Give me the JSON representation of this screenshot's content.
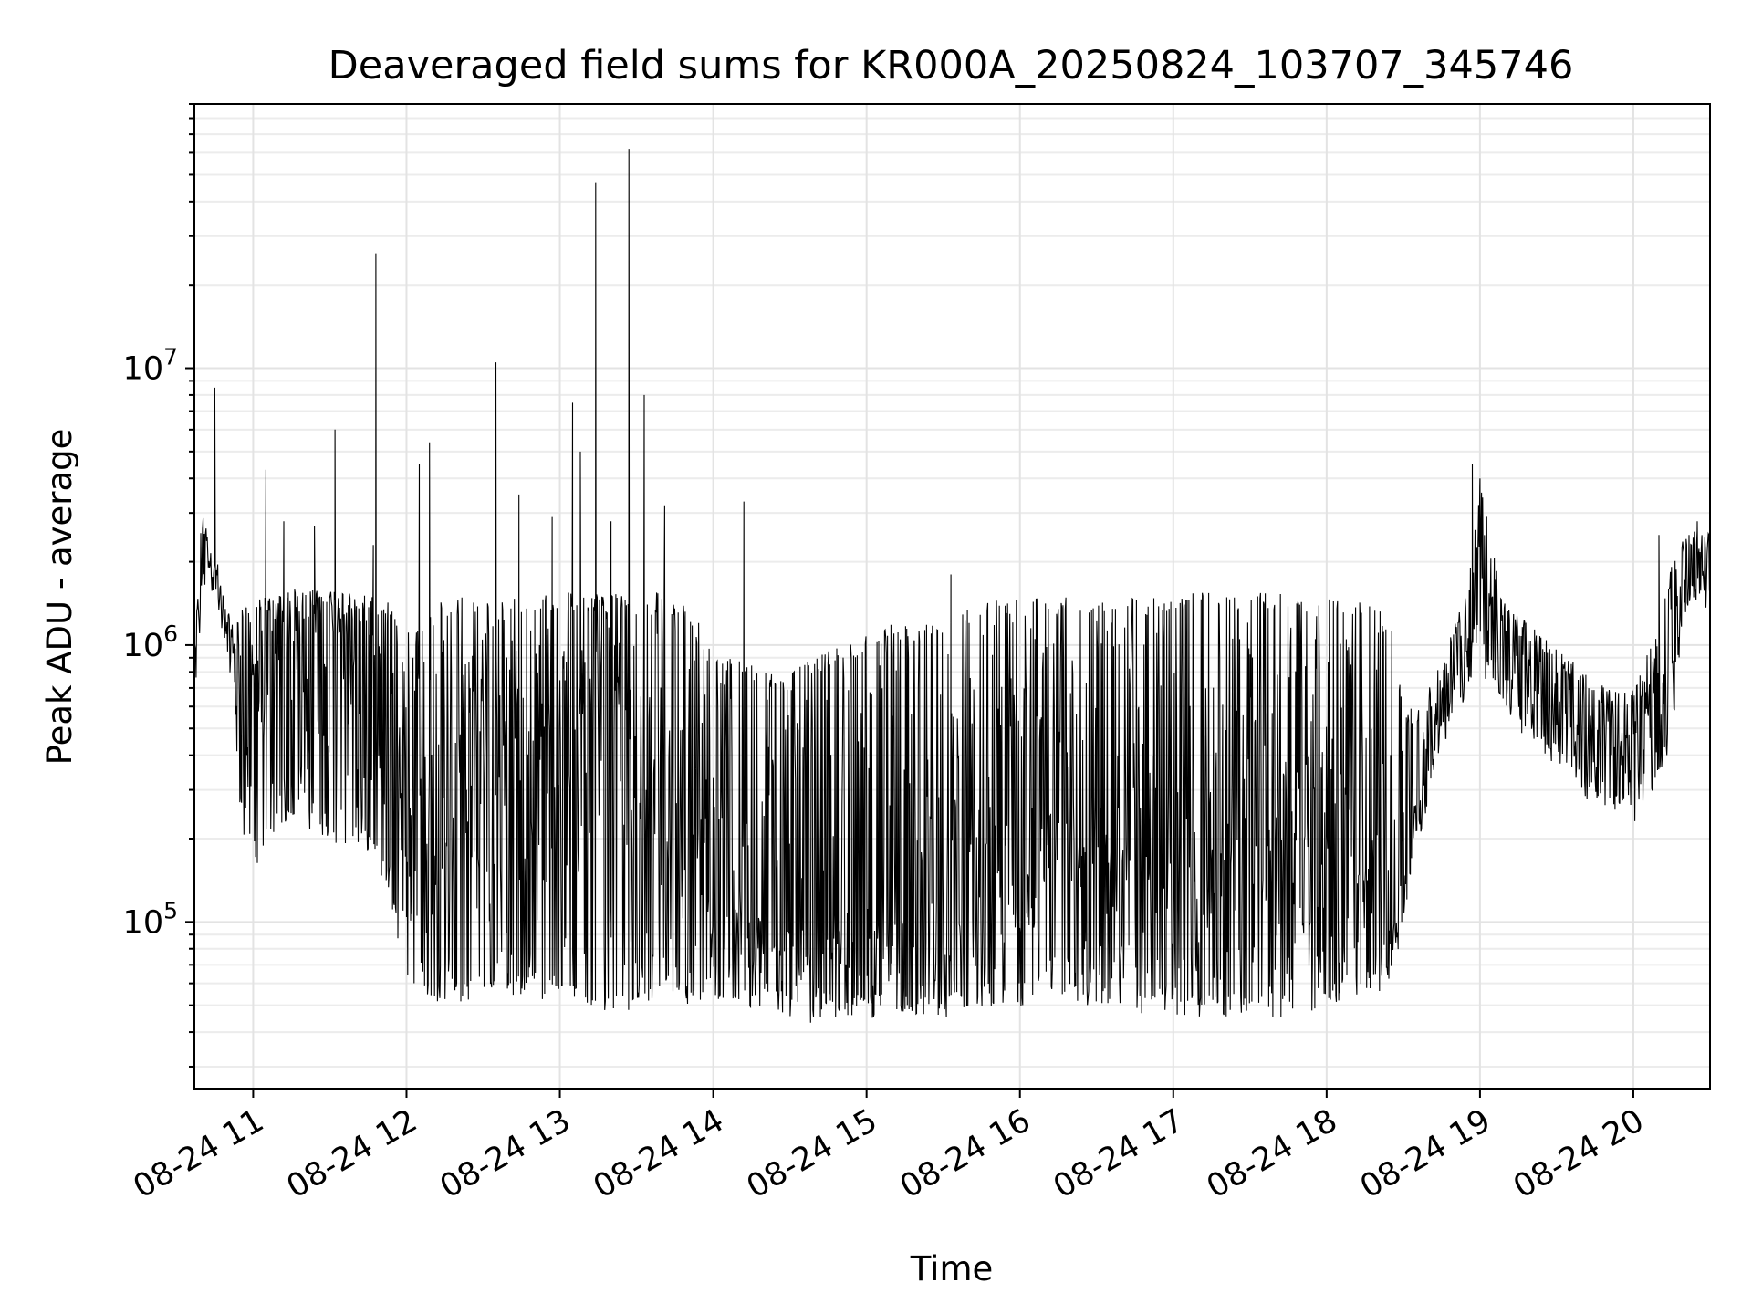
{
  "chart_data": {
    "type": "line",
    "title": "Deaveraged field sums for KR000A_20250824_103707_345746",
    "xlabel": "Time",
    "ylabel": "Peak ADU - average",
    "yscale": "log",
    "ylim": [
      25000,
      90000000
    ],
    "xlim": [
      "2025-08-24 10:37",
      "2025-08-24 20:30"
    ],
    "grid": true,
    "legend": "none",
    "line_color": "#000000",
    "x_ticks": [
      "2025-08-24 11:00",
      "2025-08-24 12:00",
      "2025-08-24 13:00",
      "2025-08-24 14:00",
      "2025-08-24 15:00",
      "2025-08-24 16:00",
      "2025-08-24 17:00",
      "2025-08-24 18:00",
      "2025-08-24 19:00",
      "2025-08-24 20:00"
    ],
    "x_tick_labels": [
      "08-24 11",
      "08-24 12",
      "08-24 13",
      "08-24 14",
      "08-24 15",
      "08-24 16",
      "08-24 17",
      "08-24 18",
      "08-24 19",
      "08-24 20"
    ],
    "y_ticks": [
      100000,
      1000000,
      10000000
    ],
    "y_tick_labels": [
      {
        "base": "10",
        "exp": "5"
      },
      {
        "base": "10",
        "exp": "6"
      },
      {
        "base": "10",
        "exp": "7"
      }
    ],
    "series": [
      {
        "x": [
          "10:37",
          "10:40",
          "10:43",
          "10:46",
          "10:49",
          "10:52",
          "10:55",
          "10:58",
          "11:05",
          "11:15",
          "11:25",
          "11:35",
          "11:45",
          "11:52",
          "12:00",
          "12:10",
          "12:20",
          "12:30",
          "12:40",
          "12:50",
          "13:00",
          "13:10",
          "13:20",
          "13:30",
          "13:40",
          "13:50",
          "14:00",
          "14:10",
          "14:20",
          "14:30",
          "14:40",
          "14:50",
          "15:00",
          "15:10",
          "15:20",
          "15:30",
          "15:40",
          "15:50",
          "16:00",
          "16:10",
          "16:20",
          "16:30",
          "16:40",
          "16:50",
          "17:00",
          "17:10",
          "17:20",
          "17:30",
          "17:40",
          "17:50",
          "18:00",
          "18:10",
          "18:20",
          "18:25",
          "18:30",
          "18:35",
          "18:40",
          "18:45",
          "18:50",
          "18:55",
          "19:00",
          "19:10",
          "19:20",
          "19:30",
          "19:40",
          "19:50",
          "20:00",
          "20:05",
          "20:10",
          "20:15",
          "20:20",
          "20:25",
          "20:30"
        ],
        "y_base": [
          600000,
          2200000,
          1800000,
          1700000,
          1200000,
          900000,
          700000,
          500000,
          800000,
          1000000,
          1100000,
          1100000,
          1000000,
          600000,
          300000,
          250000,
          300000,
          350000,
          400000,
          450000,
          500000,
          500000,
          450000,
          400000,
          350000,
          250000,
          150000,
          120000,
          110000,
          100000,
          95000,
          95000,
          100000,
          100000,
          95000,
          90000,
          120000,
          150000,
          200000,
          220000,
          220000,
          200000,
          180000,
          160000,
          150000,
          170000,
          200000,
          230000,
          250000,
          250000,
          250000,
          220000,
          200000,
          100000,
          150000,
          300000,
          450000,
          600000,
          800000,
          1000000,
          2000000,
          900000,
          800000,
          700000,
          500000,
          450000,
          450000,
          500000,
          600000,
          1200000,
          1600000,
          1800000,
          1800000
        ],
        "y_high": [
          900000,
          3500000,
          2200000,
          2000000,
          1400000,
          1200000,
          1400000,
          1400000,
          1500000,
          1600000,
          1600000,
          1600000,
          1500000,
          1500000,
          1200000,
          1400000,
          1500000,
          1500000,
          1500000,
          1500000,
          1550000,
          1550000,
          1550000,
          1550000,
          1550000,
          1400000,
          1000000,
          900000,
          800000,
          800000,
          900000,
          1000000,
          1100000,
          1200000,
          1200000,
          1200000,
          1400000,
          1500000,
          1500000,
          1500000,
          1500000,
          1500000,
          1500000,
          1500000,
          1500000,
          1550000,
          1550000,
          1550000,
          1550000,
          1500000,
          1500000,
          1450000,
          1400000,
          1200000,
          600000,
          600000,
          700000,
          900000,
          1200000,
          1600000,
          4000000,
          1400000,
          1200000,
          1000000,
          800000,
          700000,
          700000,
          900000,
          1200000,
          2000000,
          2500000,
          2600000,
          2600000
        ],
        "y_low": [
          350000,
          1700000,
          1600000,
          1400000,
          1000000,
          700000,
          250000,
          180000,
          180000,
          250000,
          230000,
          200000,
          200000,
          150000,
          70000,
          55000,
          55000,
          60000,
          60000,
          60000,
          55000,
          55000,
          50000,
          55000,
          60000,
          55000,
          50000,
          50000,
          55000,
          50000,
          45000,
          50000,
          50000,
          50000,
          50000,
          48000,
          55000,
          55000,
          55000,
          60000,
          55000,
          55000,
          50000,
          50000,
          50000,
          50000,
          50000,
          50000,
          50000,
          50000,
          55000,
          60000,
          60000,
          70000,
          100000,
          200000,
          300000,
          450000,
          600000,
          700000,
          900000,
          600000,
          500000,
          400000,
          300000,
          280000,
          250000,
          300000,
          350000,
          500000,
          1300000,
          1500000,
          1500000
        ],
        "spikes": [
          {
            "x": "10:45",
            "y": 8500000
          },
          {
            "x": "11:05",
            "y": 4300000
          },
          {
            "x": "11:12",
            "y": 2800000
          },
          {
            "x": "11:24",
            "y": 2700000
          },
          {
            "x": "11:32",
            "y": 6000000
          },
          {
            "x": "11:47",
            "y": 2300000
          },
          {
            "x": "11:48",
            "y": 26000000
          },
          {
            "x": "12:05",
            "y": 4500000
          },
          {
            "x": "12:09",
            "y": 5400000
          },
          {
            "x": "12:35",
            "y": 10500000
          },
          {
            "x": "12:44",
            "y": 3500000
          },
          {
            "x": "12:57",
            "y": 2900000
          },
          {
            "x": "13:05",
            "y": 7500000
          },
          {
            "x": "13:08",
            "y": 5000000
          },
          {
            "x": "13:14",
            "y": 47000000
          },
          {
            "x": "13:20",
            "y": 2800000
          },
          {
            "x": "13:27",
            "y": 62000000
          },
          {
            "x": "13:33",
            "y": 8000000
          },
          {
            "x": "13:41",
            "y": 3200000
          },
          {
            "x": "14:12",
            "y": 3300000
          },
          {
            "x": "15:33",
            "y": 1800000
          },
          {
            "x": "18:57",
            "y": 4500000
          },
          {
            "x": "19:00",
            "y": 4000000
          },
          {
            "x": "20:10",
            "y": 2500000
          },
          {
            "x": "20:25",
            "y": 2800000
          }
        ]
      }
    ]
  }
}
